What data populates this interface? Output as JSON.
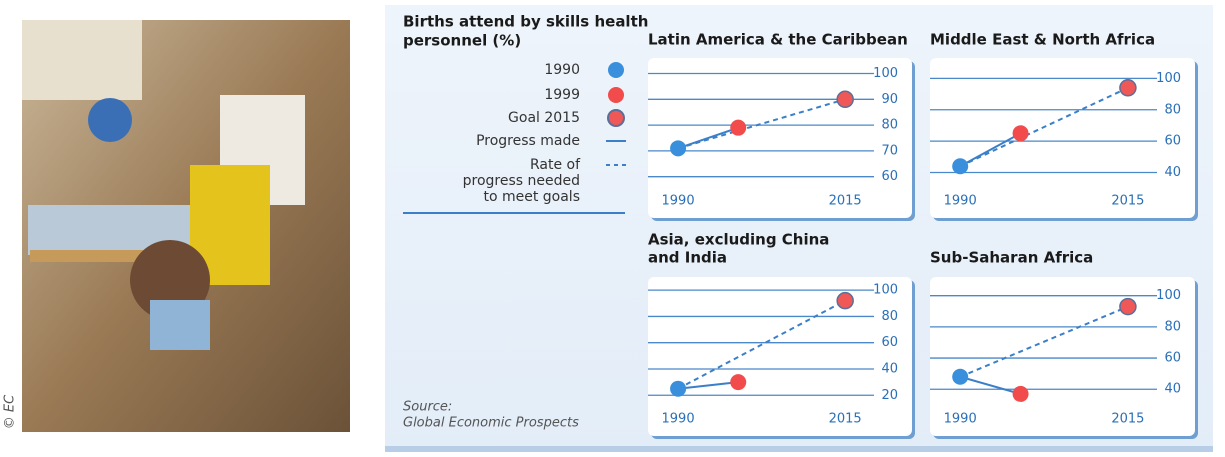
{
  "credit": "© EC",
  "legend": {
    "title": [
      "Births attend by skills health",
      "personnel (%)"
    ],
    "items": [
      {
        "label": [
          "1990"
        ],
        "color": "#3a8fdc",
        "kind": "point"
      },
      {
        "label": [
          "1999"
        ],
        "color": "#f24b4b",
        "kind": "point"
      },
      {
        "label": [
          "Goal 2015"
        ],
        "color": "#f05858",
        "kind": "point"
      },
      {
        "label": [
          "Progress made"
        ],
        "color": "#3a7fc8",
        "kind": "line",
        "dashed": false
      },
      {
        "label": [
          "Rate of",
          "progress needed",
          "to meet goals"
        ],
        "color": "#3a7fc8",
        "kind": "line",
        "dashed": true
      }
    ]
  },
  "source": [
    "Source:",
    "Global Economic Prospects"
  ],
  "chart_data": [
    {
      "type": "line",
      "title": [
        "Latin America & the Caribbean"
      ],
      "x": [
        1990,
        1999,
        2015
      ],
      "values": [
        71,
        79,
        90
      ],
      "xlim": [
        1985.5,
        2025
      ],
      "xticks": [
        1990,
        2015
      ],
      "ylim": [
        44,
        106
      ],
      "yticks": [
        60,
        70,
        80,
        90,
        100
      ],
      "grid": true
    },
    {
      "type": "line",
      "title": [
        "Middle East & North Africa"
      ],
      "x": [
        1990,
        1999,
        2015
      ],
      "values": [
        44,
        65,
        94
      ],
      "xlim": [
        1985.5,
        2025
      ],
      "xticks": [
        1990,
        2015
      ],
      "ylim": [
        11,
        113
      ],
      "yticks": [
        40,
        60,
        80,
        100
      ],
      "grid": true
    },
    {
      "type": "line",
      "title": [
        "Asia, excluding China",
        "and India"
      ],
      "x": [
        1990,
        1999,
        2015
      ],
      "values": [
        25,
        30,
        92
      ],
      "xlim": [
        1985.5,
        2025
      ],
      "xticks": [
        1990,
        2015
      ],
      "ylim": [
        -11,
        110
      ],
      "yticks": [
        20,
        40,
        60,
        80,
        100
      ],
      "grid": true
    },
    {
      "type": "line",
      "title": [
        "Sub-Saharan Africa"
      ],
      "x": [
        1990,
        1999,
        2015
      ],
      "values": [
        48,
        37,
        93
      ],
      "xlim": [
        1985.5,
        2025
      ],
      "xticks": [
        1990,
        2015
      ],
      "ylim": [
        10,
        112
      ],
      "yticks": [
        40,
        60,
        80,
        100
      ],
      "grid": true
    }
  ]
}
